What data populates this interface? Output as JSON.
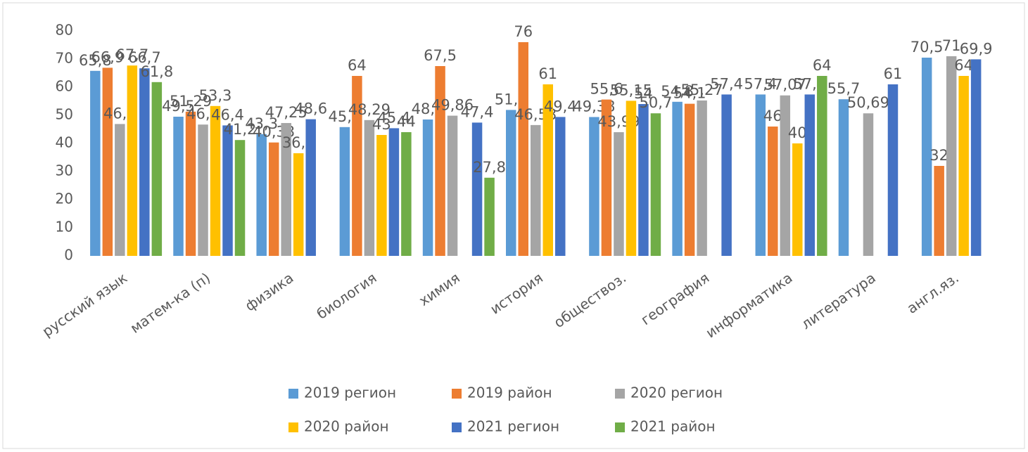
{
  "chart_data": {
    "type": "bar",
    "categories": [
      "русский язык",
      "матем-ка (п)",
      "физика",
      "биология",
      "химия",
      "история",
      "обществоз.",
      "география",
      "информатика",
      "литература",
      "англ.яз."
    ],
    "series": [
      {
        "name": "2019 регион",
        "color": "#5b9bd5",
        "values": [
          65.8,
          49.5,
          43.3,
          45.8,
          48.5,
          51.9,
          49.38,
          54.8,
          57.4,
          55.7,
          70.5
        ],
        "value_labels": [
          "65,8",
          "49,5",
          "43,3",
          "45,8",
          "48,5",
          "51,9",
          "49,38",
          "54,8",
          "57,4",
          "55,7",
          "70,5"
        ]
      },
      {
        "name": "2019 район",
        "color": "#ed7d31",
        "values": [
          66.9,
          51.29,
          40.33,
          64,
          67.5,
          76,
          55.6,
          54.1,
          46,
          null,
          32
        ],
        "value_labels": [
          "66,9",
          "51,29",
          "40,33",
          "64",
          "67,5",
          "76",
          "55,6",
          "54,1",
          "46",
          null,
          "32"
        ]
      },
      {
        "name": "2020 регион",
        "color": "#a5a5a5",
        "values": [
          46.9,
          46.7,
          47.25,
          48.29,
          49.86,
          46.53,
          43.99,
          55.27,
          57.07,
          50.69,
          71
        ],
        "value_labels": [
          "46,9",
          "46,7",
          "47,25",
          "48,29",
          "49,86",
          "46,53",
          "43,99",
          "55,27",
          "57,07",
          "50,69",
          "71"
        ]
      },
      {
        "name": "2020 район",
        "color": "#ffc000",
        "values": [
          67.7,
          53.3,
          36.5,
          43,
          null,
          61,
          55.15,
          null,
          40,
          null,
          64
        ],
        "value_labels": [
          "67,7",
          "53,3",
          "36,5",
          "43",
          null,
          "61",
          "55,15",
          null,
          "40",
          null,
          "64"
        ]
      },
      {
        "name": "2021 регион",
        "color": "#4472c4",
        "values": [
          66.7,
          46.4,
          48.6,
          45.4,
          47.4,
          49.4,
          54,
          57.4,
          57.4,
          61,
          69.9
        ],
        "value_labels": [
          "66,7",
          "46,4",
          "48,6",
          "45,4",
          "47,4",
          "49,4",
          "54",
          "57,4",
          "57,4",
          "61",
          "69,9"
        ]
      },
      {
        "name": "2021 район",
        "color": "#70ad47",
        "values": [
          61.8,
          41.2,
          null,
          44,
          27.8,
          null,
          50.7,
          null,
          64,
          null,
          null
        ],
        "value_labels": [
          "61,8",
          "41,2",
          null,
          "44",
          "27,8",
          null,
          "50,7",
          null,
          "64",
          null,
          null
        ]
      }
    ],
    "ylim": [
      0,
      80
    ],
    "yticks": [
      0,
      10,
      20,
      30,
      40,
      50,
      60,
      70,
      80
    ],
    "grid": false,
    "legend": "bottom"
  }
}
